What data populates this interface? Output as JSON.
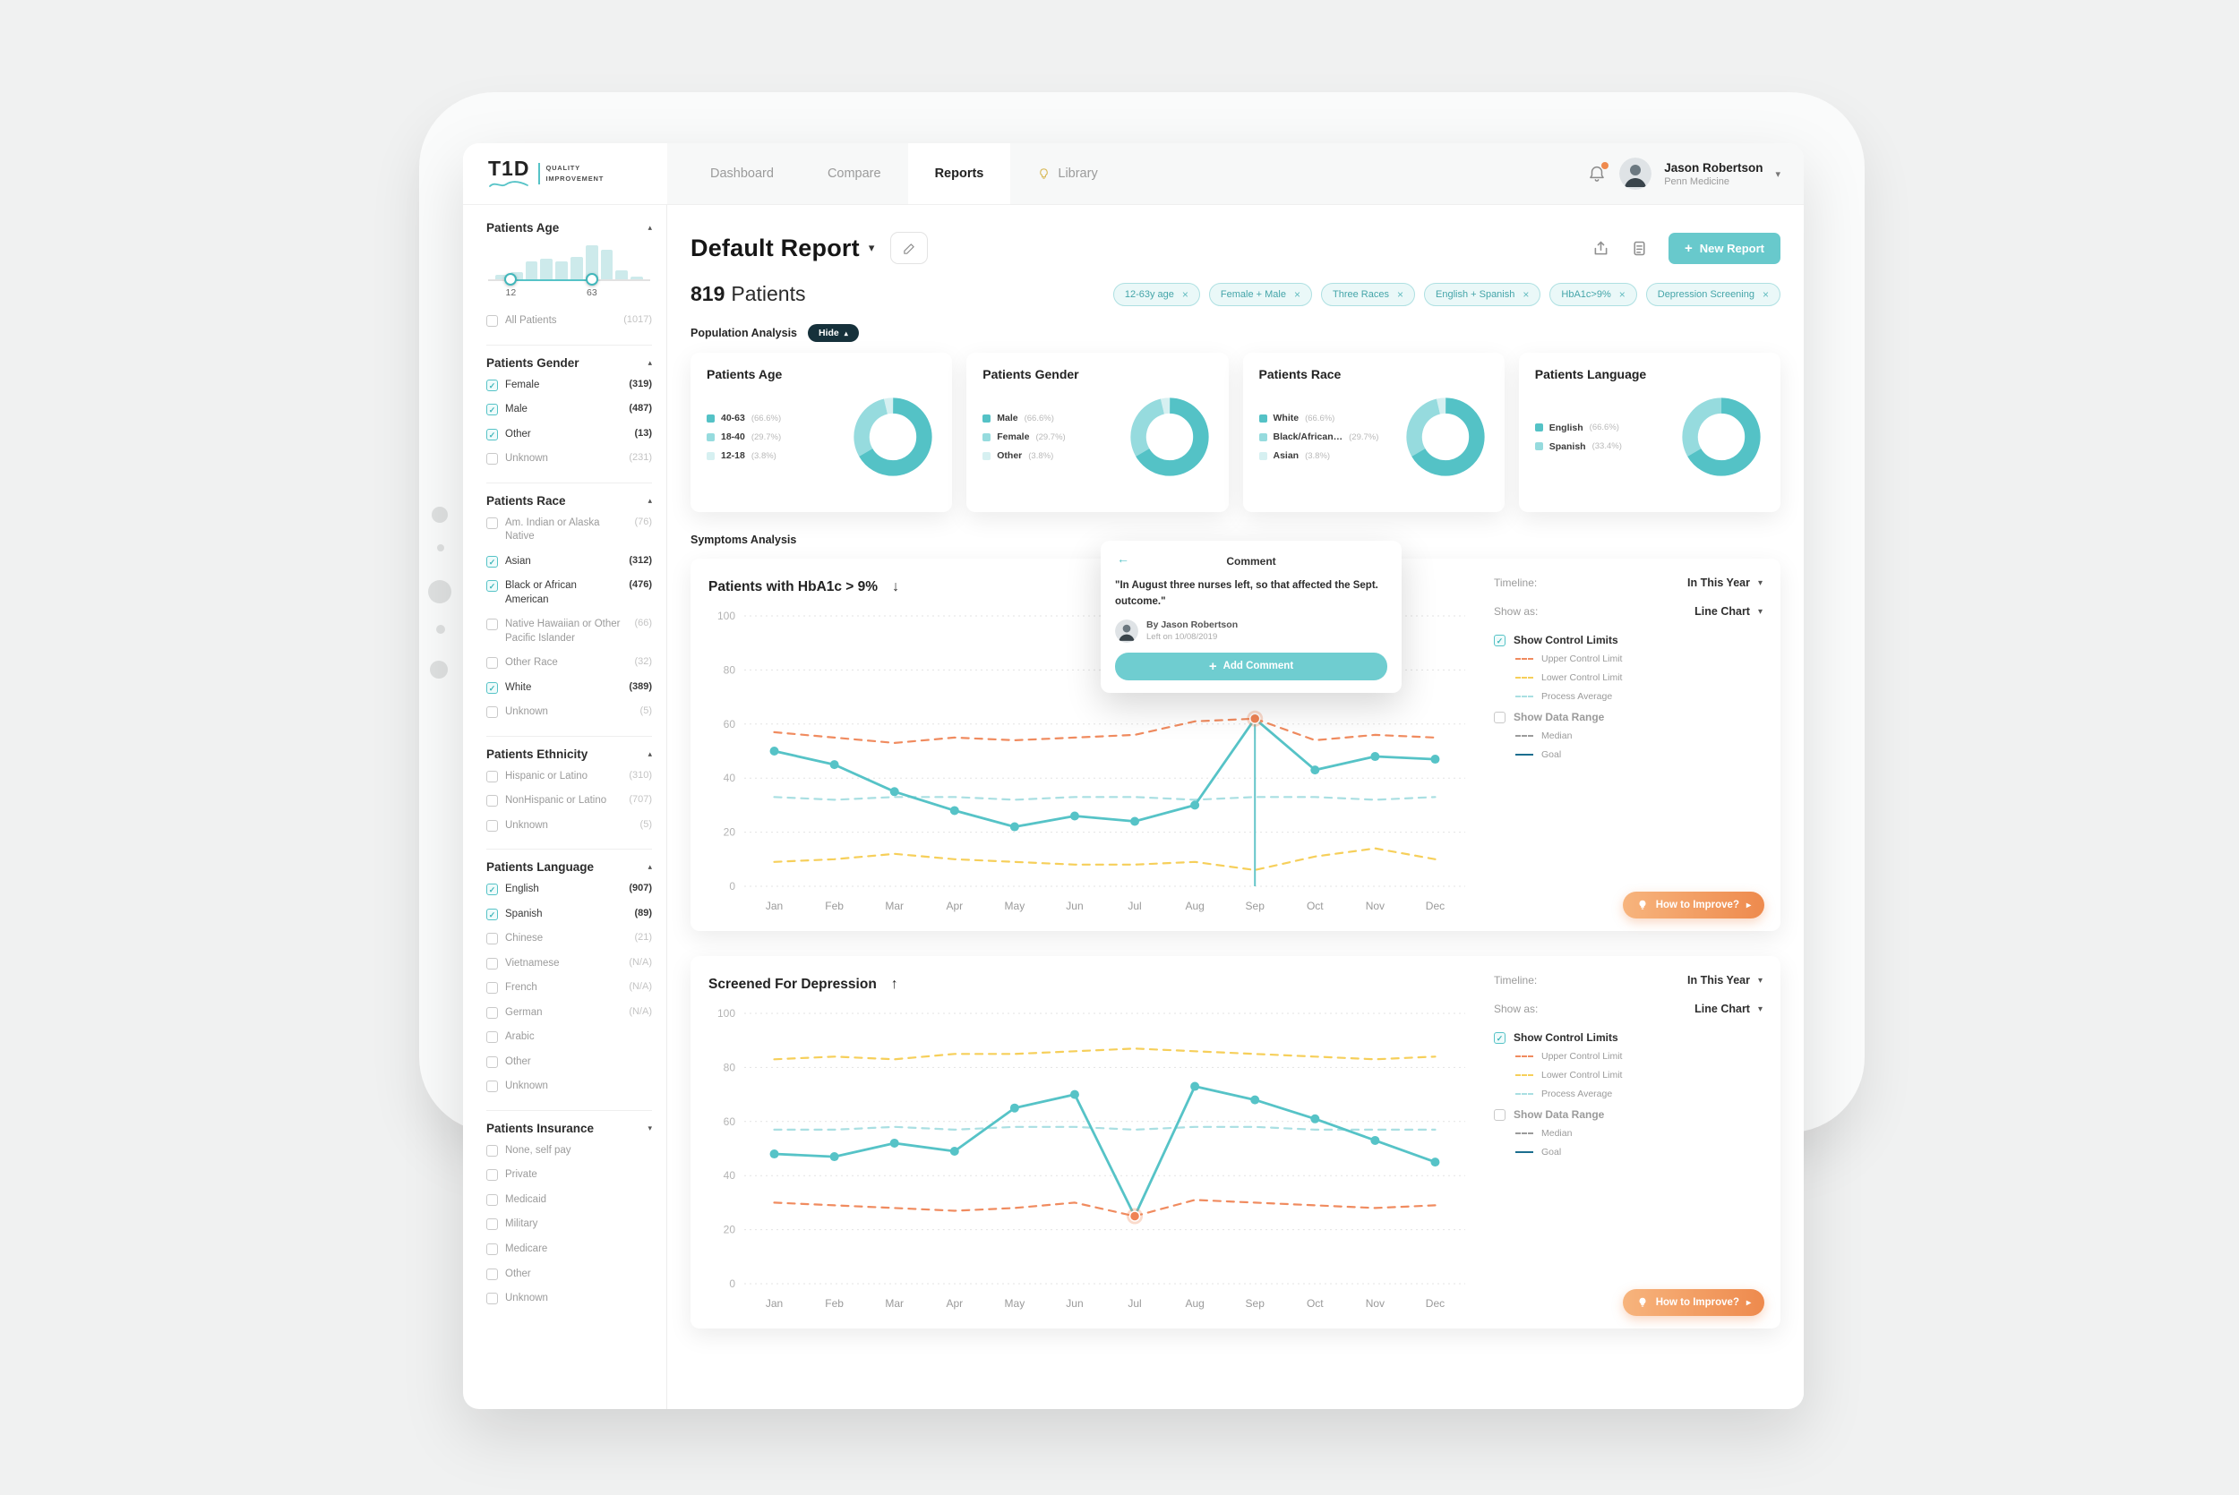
{
  "app": {
    "logo": {
      "title": "T1D",
      "subtitle_top": "QUALITY",
      "subtitle_bottom": "IMPROVEMENT"
    },
    "nav_items": [
      {
        "label": "Dashboard",
        "active": false
      },
      {
        "label": "Compare",
        "active": false
      },
      {
        "label": "Reports",
        "active": true
      },
      {
        "label": "Library",
        "active": false,
        "icon": "lightbulb-icon"
      }
    ],
    "user": {
      "name": "Jason Robertson",
      "org": "Penn Medicine"
    }
  },
  "sidebar": {
    "age": {
      "title": "Patients Age",
      "hist": [
        2,
        3,
        8,
        9,
        8,
        10,
        15,
        13,
        4,
        1
      ],
      "min_label": "12",
      "max_label": "63",
      "all": {
        "label": "All Patients",
        "count": "(1017)",
        "checked": false
      }
    },
    "sections": [
      {
        "id": "gender",
        "title": "Patients Gender",
        "collapsed": false,
        "items": [
          {
            "label": "Female",
            "count": "(319)",
            "checked": true
          },
          {
            "label": "Male",
            "count": "(487)",
            "checked": true
          },
          {
            "label": "Other",
            "count": "(13)",
            "checked": true
          },
          {
            "label": "Unknown",
            "count": "(231)",
            "checked": false
          }
        ]
      },
      {
        "id": "race",
        "title": "Patients Race",
        "collapsed": false,
        "items": [
          {
            "label": "Am. Indian or Alaska Native",
            "count": "(76)",
            "checked": false
          },
          {
            "label": "Asian",
            "count": "(312)",
            "checked": true
          },
          {
            "label": "Black or African American",
            "count": "(476)",
            "checked": true
          },
          {
            "label": "Native Hawaiian or Other Pacific Islander",
            "count": "(66)",
            "checked": false
          },
          {
            "label": "Other Race",
            "count": "(32)",
            "checked": false
          },
          {
            "label": "White",
            "count": "(389)",
            "checked": true
          },
          {
            "label": "Unknown",
            "count": "(5)",
            "checked": false
          }
        ]
      },
      {
        "id": "ethnicity",
        "title": "Patients Ethnicity",
        "collapsed": false,
        "items": [
          {
            "label": "Hispanic or Latino",
            "count": "(310)",
            "checked": false
          },
          {
            "label": "NonHispanic or Latino",
            "count": "(707)",
            "checked": false
          },
          {
            "label": "Unknown",
            "count": "(5)",
            "checked": false
          }
        ]
      },
      {
        "id": "language",
        "title": "Patients Language",
        "collapsed": false,
        "items": [
          {
            "label": "English",
            "count": "(907)",
            "checked": true
          },
          {
            "label": "Spanish",
            "count": "(89)",
            "checked": true
          },
          {
            "label": "Chinese",
            "count": "(21)",
            "checked": false
          },
          {
            "label": "Vietnamese",
            "count": "(N/A)",
            "checked": false
          },
          {
            "label": "French",
            "count": "(N/A)",
            "checked": false
          },
          {
            "label": "German",
            "count": "(N/A)",
            "checked": false
          },
          {
            "label": "Arabic",
            "count": "",
            "checked": false
          },
          {
            "label": "Other",
            "count": "",
            "checked": false
          },
          {
            "label": "Unknown",
            "count": "",
            "checked": false
          }
        ]
      },
      {
        "id": "insurance",
        "title": "Patients Insurance",
        "collapsed": true,
        "items": [
          {
            "label": "None, self pay",
            "count": "",
            "checked": false
          },
          {
            "label": "Private",
            "count": "",
            "checked": false
          },
          {
            "label": "Medicaid",
            "count": "",
            "checked": false
          },
          {
            "label": "Military",
            "count": "",
            "checked": false
          },
          {
            "label": "Medicare",
            "count": "",
            "checked": false
          },
          {
            "label": "Other",
            "count": "",
            "checked": false
          },
          {
            "label": "Unknown",
            "count": "",
            "checked": false
          }
        ]
      }
    ]
  },
  "report": {
    "title": "Default Report",
    "patients_count": "819",
    "patients_word": "Patients",
    "new_report_label": "New Report",
    "chips": [
      "12-63y age",
      "Female + Male",
      "Three Races",
      "English + Spanish",
      "HbA1c>9%",
      "Depression Screening"
    ],
    "population_analysis_label": "Population Analysis",
    "hide_label": "Hide",
    "symptoms_label": "Symptoms Analysis"
  },
  "population_cards": [
    {
      "title": "Patients Age",
      "segments": [
        {
          "label": "40-63",
          "pct": "(66.6%)",
          "value": 66.6,
          "color": "#54c2c6"
        },
        {
          "label": "18-40",
          "pct": "(29.7%)",
          "value": 29.7,
          "color": "#96dbde"
        },
        {
          "label": "12-18",
          "pct": "(3.8%)",
          "value": 3.8,
          "color": "#d6f0f1"
        }
      ]
    },
    {
      "title": "Patients Gender",
      "segments": [
        {
          "label": "Male",
          "pct": "(66.6%)",
          "value": 66.6,
          "color": "#54c2c6"
        },
        {
          "label": "Female",
          "pct": "(29.7%)",
          "value": 29.7,
          "color": "#96dbde"
        },
        {
          "label": "Other",
          "pct": "(3.8%)",
          "value": 3.8,
          "color": "#d6f0f1"
        }
      ]
    },
    {
      "title": "Patients Race",
      "segments": [
        {
          "label": "White",
          "pct": "(66.6%)",
          "value": 66.6,
          "color": "#54c2c6"
        },
        {
          "label": "Black/African…",
          "pct": "(29.7%)",
          "value": 29.7,
          "color": "#96dbde"
        },
        {
          "label": "Asian",
          "pct": "(3.8%)",
          "value": 3.8,
          "color": "#d6f0f1"
        }
      ]
    },
    {
      "title": "Patients Language",
      "segments": [
        {
          "label": "English",
          "pct": "(66.6%)",
          "value": 66.6,
          "color": "#54c2c6"
        },
        {
          "label": "Spanish",
          "pct": "(33.4%)",
          "value": 33.4,
          "color": "#96dbde"
        }
      ]
    }
  ],
  "chart_controls": {
    "timeline_label": "Timeline:",
    "show_as_label": "Show as:",
    "control_limits_label": "Show Control Limits",
    "data_range_label": "Show Data Range",
    "limits_legend": [
      {
        "label": "Upper Control Limit",
        "color": "#f08b5f",
        "style": "dashed"
      },
      {
        "label": "Lower Control Limit",
        "color": "#f6cf5a",
        "style": "dashed"
      },
      {
        "label": "Process Average",
        "color": "#a9dfe2",
        "style": "dashed"
      }
    ],
    "range_legend": [
      {
        "label": "Median",
        "color": "#9b9b9b",
        "style": "dashed"
      },
      {
        "label": "Goal",
        "color": "#1b6e8f",
        "style": "solid"
      }
    ],
    "improve_label": "How to Improve?"
  },
  "chart_data": [
    {
      "type": "line",
      "title": "Patients with HbA1c > 9%",
      "timeline_value": "In This Year",
      "show_as_value": "Line Chart",
      "x": [
        "Jan",
        "Feb",
        "Mar",
        "Apr",
        "May",
        "Jun",
        "Jul",
        "Aug",
        "Sep",
        "Oct",
        "Nov",
        "Dec"
      ],
      "ylim": [
        0,
        100
      ],
      "yticks": [
        0,
        20,
        40,
        60,
        80,
        100
      ],
      "series": [
        {
          "name": "Upper Control Limit",
          "color": "#f08b5f",
          "dashed": true,
          "values": [
            57,
            55,
            53,
            55,
            54,
            55,
            56,
            61,
            62,
            54,
            56,
            55
          ]
        },
        {
          "name": "Lower Control Limit",
          "color": "#f6cf5a",
          "dashed": true,
          "values": [
            9,
            10,
            12,
            10,
            9,
            8,
            8,
            9,
            6,
            11,
            14,
            10
          ]
        },
        {
          "name": "Process Average",
          "color": "#a9dfe2",
          "dashed": true,
          "values": [
            33,
            32,
            33,
            33,
            32,
            33,
            33,
            32,
            33,
            33,
            32,
            33
          ]
        },
        {
          "name": "Patients with HbA1c > 9%",
          "color": "#56c3c7",
          "dashed": false,
          "values": [
            50,
            45,
            35,
            28,
            22,
            26,
            24,
            30,
            62,
            43,
            48,
            47
          ]
        }
      ],
      "highlight": {
        "index": 8,
        "color": "#ef8354",
        "drop_line": true
      }
    },
    {
      "type": "line",
      "title": "Screened For Depression",
      "timeline_value": "In This Year",
      "show_as_value": "Line Chart",
      "x": [
        "Jan",
        "Feb",
        "Mar",
        "Apr",
        "May",
        "Jun",
        "Jul",
        "Aug",
        "Sep",
        "Oct",
        "Nov",
        "Dec"
      ],
      "ylim": [
        0,
        100
      ],
      "yticks": [
        0,
        20,
        40,
        60,
        80,
        100
      ],
      "series": [
        {
          "name": "Upper Control Limit",
          "color": "#f6cf5a",
          "dashed": true,
          "values": [
            83,
            84,
            83,
            85,
            85,
            86,
            87,
            86,
            85,
            84,
            83,
            84
          ]
        },
        {
          "name": "Lower Control Limit",
          "color": "#f08b5f",
          "dashed": true,
          "values": [
            30,
            29,
            28,
            27,
            28,
            30,
            25,
            31,
            30,
            29,
            28,
            29
          ]
        },
        {
          "name": "Process Average",
          "color": "#a9dfe2",
          "dashed": true,
          "values": [
            57,
            57,
            58,
            57,
            58,
            58,
            57,
            58,
            58,
            57,
            57,
            57
          ]
        },
        {
          "name": "Screened For Depression",
          "color": "#56c3c7",
          "dashed": false,
          "values": [
            48,
            47,
            52,
            49,
            65,
            70,
            25,
            73,
            68,
            61,
            53,
            45
          ]
        }
      ],
      "highlight": {
        "index": 6,
        "color": "#ef8354",
        "drop_line": false
      }
    }
  ],
  "comment_popup": {
    "title": "Comment",
    "text": "\"In August three nurses left, so that affected the Sept. outcome.\"",
    "by": "By Jason Robertson",
    "left_on": "Left on 10/08/2019",
    "add_label": "Add Comment"
  }
}
